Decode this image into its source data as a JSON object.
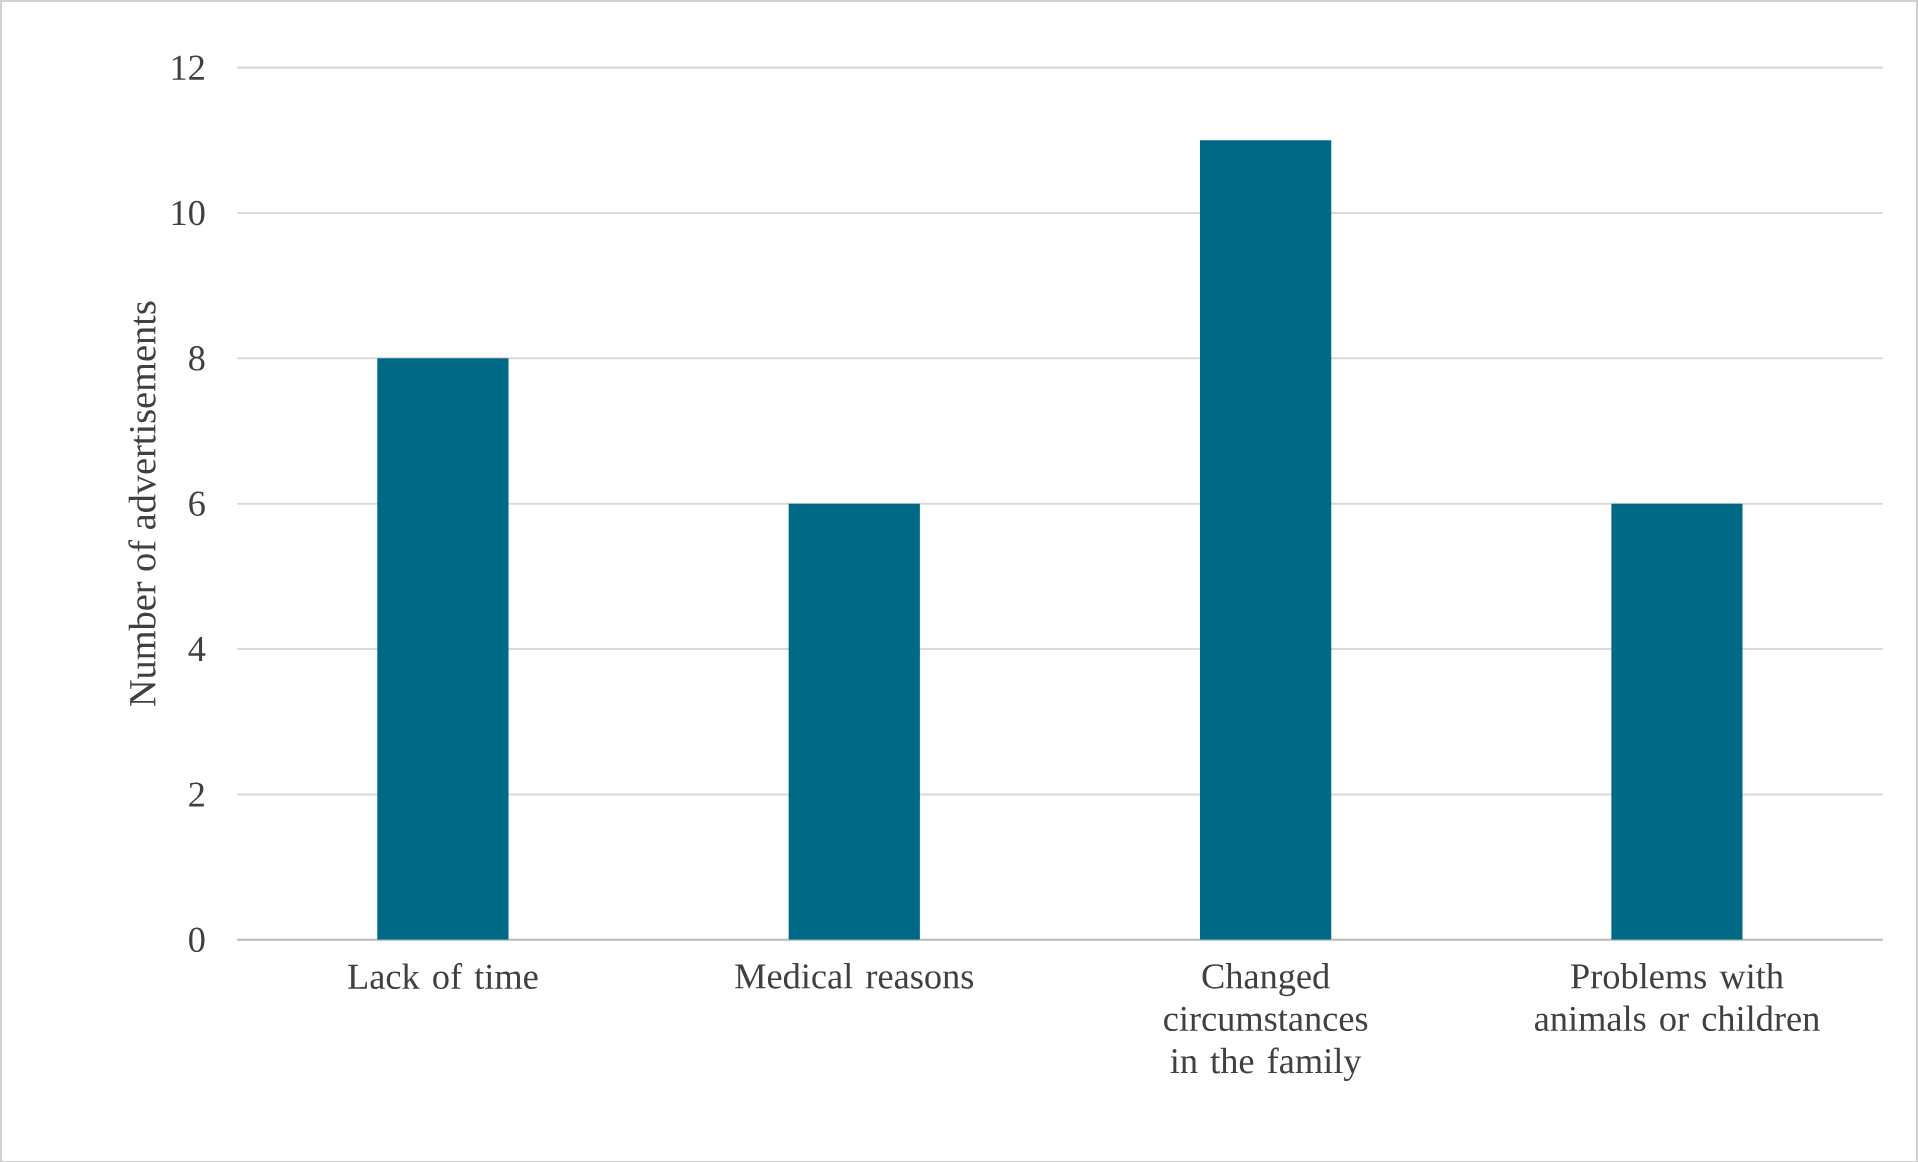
{
  "chart_data": {
    "type": "bar",
    "ylabel": "Number of advertisements",
    "categories": [
      "Lack of time",
      "Medical reasons",
      "Changed circumstances in the family",
      "Problems with animals or children"
    ],
    "values": [
      8,
      6,
      11,
      6
    ],
    "color": "#006a86",
    "ylim": [
      0,
      12
    ],
    "yticks": [
      0,
      2,
      4,
      6,
      8,
      10,
      12
    ],
    "grid": "y"
  }
}
